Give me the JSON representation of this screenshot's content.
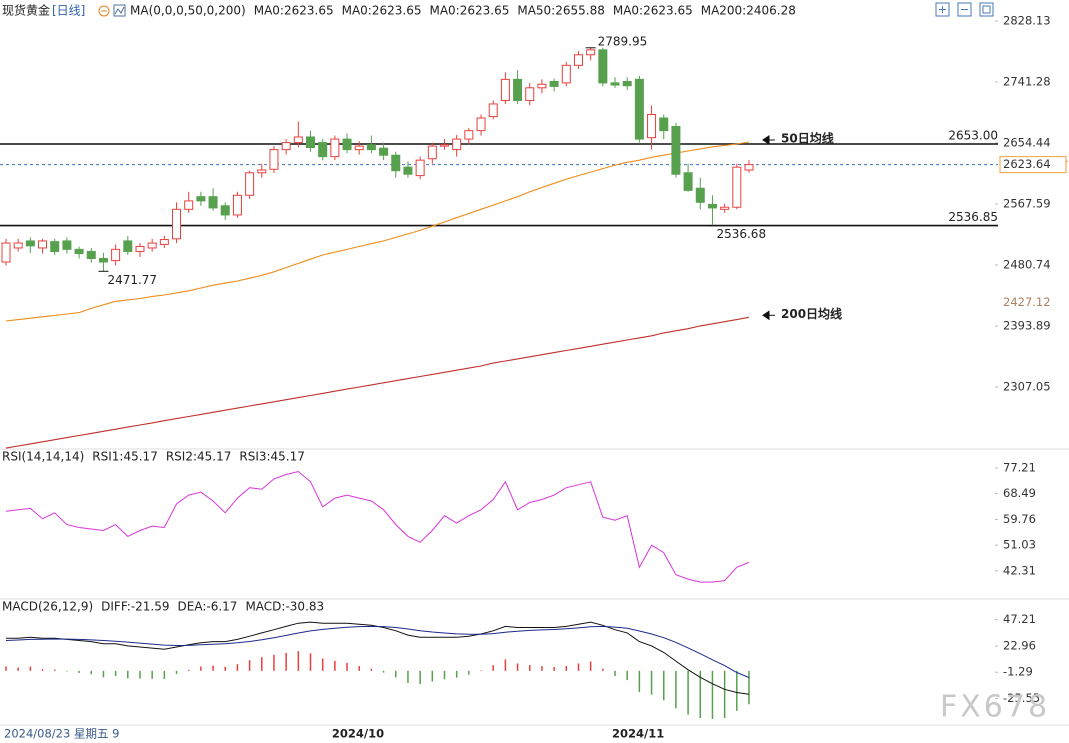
{
  "chart_data": {
    "type": "candlestick",
    "header": {
      "symbol": "现货黄金",
      "period": "[日线]",
      "indicator": "MA(0,0,0,50,0,200)",
      "items": [
        {
          "text": "MA0:2623.65",
          "color": "#222222"
        },
        {
          "text": "MA0:2623.65",
          "color": "#1f3fa8"
        },
        {
          "text": "MA0:2623.65",
          "color": "#d836d8"
        },
        {
          "text": "MA50:2655.88",
          "color": "#f08c1a"
        },
        {
          "text": "MA0:2623.65",
          "color": "#7a7a7a"
        },
        {
          "text": "MA200:2406.28",
          "color": "#d0342c"
        }
      ]
    },
    "categories": [
      null,
      null,
      null,
      null,
      null,
      null,
      null,
      null,
      null,
      null,
      null,
      null,
      null,
      null,
      null,
      null,
      null,
      null,
      null,
      null,
      null,
      null,
      null,
      null,
      null,
      null,
      null,
      "2024/10",
      null,
      null,
      null,
      null,
      null,
      null,
      null,
      null,
      null,
      null,
      null,
      null,
      null,
      null,
      null,
      null,
      null,
      null,
      null,
      null,
      null,
      null,
      "2024/11",
      null,
      null,
      null,
      null,
      null,
      null,
      null,
      null,
      null,
      null,
      null
    ],
    "cursor_label": "2024/08/23 星期五 9",
    "up_color": "#e8403c",
    "down_color": "#56a04e",
    "candles": [
      {
        "open": 2485,
        "high": 2518,
        "low": 2480,
        "close": 2512
      },
      {
        "open": 2505,
        "high": 2518,
        "low": 2500,
        "close": 2512
      },
      {
        "open": 2515,
        "high": 2520,
        "low": 2498,
        "close": 2508
      },
      {
        "open": 2505,
        "high": 2518,
        "low": 2497,
        "close": 2515
      },
      {
        "open": 2514,
        "high": 2518,
        "low": 2495,
        "close": 2500
      },
      {
        "open": 2515,
        "high": 2520,
        "low": 2497,
        "close": 2503
      },
      {
        "open": 2503,
        "high": 2507,
        "low": 2490,
        "close": 2497
      },
      {
        "open": 2500,
        "high": 2505,
        "low": 2484,
        "close": 2490
      },
      {
        "open": 2490,
        "high": 2498,
        "low": 2471.77,
        "close": 2485
      },
      {
        "open": 2487,
        "high": 2510,
        "low": 2480,
        "close": 2503
      },
      {
        "open": 2515,
        "high": 2522,
        "low": 2495,
        "close": 2500
      },
      {
        "open": 2500,
        "high": 2512,
        "low": 2492,
        "close": 2507
      },
      {
        "open": 2505,
        "high": 2518,
        "low": 2500,
        "close": 2512
      },
      {
        "open": 2510,
        "high": 2522,
        "low": 2505,
        "close": 2517
      },
      {
        "open": 2518,
        "high": 2570,
        "low": 2512,
        "close": 2560
      },
      {
        "open": 2560,
        "high": 2585,
        "low": 2555,
        "close": 2572
      },
      {
        "open": 2578,
        "high": 2585,
        "low": 2565,
        "close": 2572
      },
      {
        "open": 2578,
        "high": 2590,
        "low": 2558,
        "close": 2562
      },
      {
        "open": 2565,
        "high": 2570,
        "low": 2545,
        "close": 2552
      },
      {
        "open": 2552,
        "high": 2585,
        "low": 2548,
        "close": 2580
      },
      {
        "open": 2580,
        "high": 2615,
        "low": 2575,
        "close": 2612
      },
      {
        "open": 2612,
        "high": 2625,
        "low": 2605,
        "close": 2616
      },
      {
        "open": 2617,
        "high": 2650,
        "low": 2612,
        "close": 2645
      },
      {
        "open": 2645,
        "high": 2660,
        "low": 2638,
        "close": 2655
      },
      {
        "open": 2655,
        "high": 2685,
        "low": 2648,
        "close": 2663
      },
      {
        "open": 2663,
        "high": 2672,
        "low": 2642,
        "close": 2648
      },
      {
        "open": 2655,
        "high": 2660,
        "low": 2630,
        "close": 2635
      },
      {
        "open": 2635,
        "high": 2665,
        "low": 2630,
        "close": 2660
      },
      {
        "open": 2660,
        "high": 2668,
        "low": 2640,
        "close": 2645
      },
      {
        "open": 2645,
        "high": 2657,
        "low": 2638,
        "close": 2650
      },
      {
        "open": 2652,
        "high": 2665,
        "low": 2640,
        "close": 2645
      },
      {
        "open": 2647,
        "high": 2655,
        "low": 2630,
        "close": 2637
      },
      {
        "open": 2637,
        "high": 2642,
        "low": 2605,
        "close": 2615
      },
      {
        "open": 2620,
        "high": 2628,
        "low": 2605,
        "close": 2610
      },
      {
        "open": 2608,
        "high": 2635,
        "low": 2603,
        "close": 2630
      },
      {
        "open": 2632,
        "high": 2655,
        "low": 2625,
        "close": 2650
      },
      {
        "open": 2650,
        "high": 2660,
        "low": 2645,
        "close": 2652
      },
      {
        "open": 2645,
        "high": 2666,
        "low": 2635,
        "close": 2660
      },
      {
        "open": 2660,
        "high": 2676,
        "low": 2652,
        "close": 2672
      },
      {
        "open": 2672,
        "high": 2695,
        "low": 2665,
        "close": 2690
      },
      {
        "open": 2692,
        "high": 2715,
        "low": 2688,
        "close": 2710
      },
      {
        "open": 2715,
        "high": 2755,
        "low": 2710,
        "close": 2745
      },
      {
        "open": 2745,
        "high": 2758,
        "low": 2710,
        "close": 2715
      },
      {
        "open": 2715,
        "high": 2740,
        "low": 2708,
        "close": 2733
      },
      {
        "open": 2733,
        "high": 2745,
        "low": 2725,
        "close": 2738
      },
      {
        "open": 2742,
        "high": 2746,
        "low": 2728,
        "close": 2735
      },
      {
        "open": 2740,
        "high": 2770,
        "low": 2735,
        "close": 2765
      },
      {
        "open": 2765,
        "high": 2785,
        "low": 2760,
        "close": 2780
      },
      {
        "open": 2780,
        "high": 2789.95,
        "low": 2772,
        "close": 2787
      },
      {
        "open": 2787,
        "high": 2790,
        "low": 2735,
        "close": 2740
      },
      {
        "open": 2740,
        "high": 2748,
        "low": 2733,
        "close": 2737
      },
      {
        "open": 2742,
        "high": 2748,
        "low": 2730,
        "close": 2736
      },
      {
        "open": 2745,
        "high": 2750,
        "low": 2655,
        "close": 2660
      },
      {
        "open": 2662,
        "high": 2708,
        "low": 2645,
        "close": 2695
      },
      {
        "open": 2690,
        "high": 2695,
        "low": 2660,
        "close": 2672
      },
      {
        "open": 2678,
        "high": 2683,
        "low": 2605,
        "close": 2610
      },
      {
        "open": 2612,
        "high": 2625,
        "low": 2585,
        "close": 2587
      },
      {
        "open": 2590,
        "high": 2605,
        "low": 2560,
        "close": 2570
      },
      {
        "open": 2567,
        "high": 2580,
        "low": 2536.68,
        "close": 2562
      },
      {
        "open": 2560,
        "high": 2568,
        "low": 2555,
        "close": 2563
      },
      {
        "open": 2563,
        "high": 2625,
        "low": 2560,
        "close": 2620
      },
      {
        "open": 2616,
        "high": 2630,
        "low": 2612,
        "close": 2623.64
      }
    ],
    "ma50": {
      "color": "#f08c1a",
      "values": [
        2401,
        2403,
        2405,
        2407,
        2409,
        2411,
        2413,
        2419,
        2424,
        2429,
        2431,
        2433,
        2436,
        2438,
        2441,
        2444,
        2448,
        2452,
        2455,
        2458,
        2462,
        2466,
        2471,
        2477,
        2483,
        2489,
        2495,
        2499,
        2503,
        2507,
        2511,
        2515,
        2520,
        2525,
        2530,
        2536,
        2542,
        2548,
        2554,
        2560,
        2566,
        2572,
        2578,
        2585,
        2591,
        2597,
        2603,
        2608,
        2613,
        2618,
        2623,
        2627,
        2630,
        2634,
        2637,
        2640,
        2643,
        2646,
        2649,
        2651,
        2653,
        2655.88
      ]
    },
    "ma200": {
      "color": "#c0302a",
      "values": [
        2220,
        2223,
        2226,
        2229,
        2232,
        2235,
        2238,
        2241,
        2244,
        2247,
        2250,
        2253,
        2256,
        2259,
        2262,
        2265,
        2268,
        2271,
        2274,
        2277,
        2280,
        2283,
        2286,
        2289,
        2292,
        2295,
        2298,
        2301,
        2304,
        2307,
        2310,
        2313,
        2316,
        2319,
        2322,
        2325,
        2328,
        2331,
        2334,
        2337,
        2341,
        2344,
        2347,
        2350,
        2353,
        2356,
        2359,
        2362,
        2365,
        2368,
        2371,
        2374,
        2377,
        2380,
        2384,
        2387,
        2390,
        2394,
        2397,
        2400,
        2403,
        2406.28
      ]
    },
    "ylim": [
      2220.2,
      2858
    ],
    "yticks": [
      2828.13,
      2741.28,
      2654.44,
      2567.59,
      2480.74,
      2393.89,
      2307.05
    ],
    "hlines": [
      {
        "value": 2653,
        "label": "2653.00"
      },
      2536.85
    ],
    "last_price": 2623.64,
    "side_labels": [
      2427.12
    ],
    "extremes": [
      {
        "value": 2789.95,
        "color": "#e8403c"
      },
      {
        "value": 2471.77,
        "color": "#4a9a45"
      },
      {
        "value": 2536.68,
        "color": "#4a9a45"
      }
    ],
    "ma_notes": [
      {
        "text": "50日均线",
        "line": "ma50"
      },
      {
        "text": "200日均线",
        "line": "ma200"
      }
    ],
    "notes_color": "#e00000",
    "watermark": "FX678",
    "rsi": {
      "legend": [
        {
          "text": "RSI(14,14,14)",
          "color": "#222222"
        },
        {
          "text": "RSI1:45.17",
          "color": "#222222"
        },
        {
          "text": "RSI2:45.17",
          "color": "#1f3fa8"
        },
        {
          "text": "RSI3:45.17",
          "color": "#d836d8"
        }
      ],
      "color": "#d836d8",
      "values": [
        62.5,
        63,
        63.5,
        60,
        62,
        58,
        57,
        56.5,
        56,
        58,
        54,
        56,
        57.5,
        57,
        65,
        68,
        69,
        66,
        62,
        67,
        70.5,
        70,
        73.5,
        75,
        76,
        72.5,
        64,
        67,
        68,
        67,
        66,
        63,
        58,
        54,
        52,
        56,
        61,
        58.5,
        61,
        63,
        66.5,
        72.5,
        63,
        65.5,
        66.5,
        68,
        70.5,
        71.5,
        72.5,
        60.5,
        59.5,
        61,
        43.5,
        51,
        48.5,
        41,
        39.5,
        38.5,
        38.5,
        39,
        43.5,
        45.17
      ],
      "ylim": [
        33.1,
        83.3
      ],
      "yticks": [
        77.21,
        68.49,
        59.76,
        51.03,
        42.31
      ]
    },
    "macd": {
      "legend": [
        {
          "text": "MACD(26,12,9)",
          "color": "#222222"
        },
        {
          "text": "DIFF:-21.59",
          "color": "#222222"
        },
        {
          "text": "DEA:-6.17",
          "color": "#1f3fa8"
        },
        {
          "text": "MACD:-30.83",
          "color": "#d836d8"
        }
      ],
      "diff": {
        "color": "#111111",
        "values": [
          30,
          30,
          31,
          30,
          30,
          29,
          28,
          27,
          25,
          25,
          23,
          22,
          21,
          20,
          22,
          24,
          26,
          27,
          27,
          29,
          32,
          35,
          38,
          41,
          44,
          45,
          44,
          44,
          44,
          43,
          42,
          40,
          37,
          33,
          31,
          31,
          31,
          31,
          32,
          34,
          37,
          41,
          40,
          40,
          40,
          40,
          41,
          43,
          45,
          42,
          38,
          35,
          27,
          23,
          17,
          9,
          1,
          -6,
          -12,
          -17,
          -20,
          -21.59
        ]
      },
      "dea": {
        "color": "#1a2a8c",
        "values": [
          28,
          28.5,
          29,
          29.2,
          29.4,
          29.3,
          29,
          28.6,
          28,
          27.4,
          26.5,
          25.6,
          24.7,
          23.8,
          23.4,
          23.5,
          24,
          24.6,
          25.1,
          25.9,
          27.1,
          28.7,
          30.6,
          32.7,
          34.9,
          36.9,
          38.3,
          39.4,
          40.3,
          40.8,
          41,
          40.8,
          40,
          38.6,
          37.1,
          35.9,
          34.9,
          34.1,
          33.7,
          33.8,
          34.4,
          35.7,
          36.6,
          37.3,
          37.8,
          38.2,
          38.8,
          39.6,
          40.7,
          41,
          40.4,
          39.3,
          36.8,
          34,
          30.6,
          26.3,
          21.2,
          15.8,
          10.2,
          4.8,
          -1.5,
          -6.17
        ]
      },
      "hist": {
        "up_color": "#e8403c",
        "down_color": "#56a04e",
        "values": [
          4,
          3,
          4,
          1.6,
          1.2,
          -0.6,
          -2,
          -3.2,
          -6,
          -4.8,
          -7,
          -7.2,
          -7.4,
          -7.6,
          -2.8,
          1,
          4,
          4.8,
          3.8,
          6.2,
          9.8,
          12.6,
          14.8,
          16.6,
          18.2,
          16.2,
          11.4,
          9.2,
          7.4,
          4.4,
          2,
          -1.6,
          -6,
          -11.2,
          -12.2,
          -9.8,
          -7.8,
          -6.2,
          -3.4,
          0.4,
          5.2,
          10.6,
          6.8,
          5.4,
          4.4,
          3.6,
          4.4,
          6.8,
          8.6,
          2,
          -4.8,
          -8.6,
          -19.6,
          -22,
          -27.2,
          -34.6,
          -40.4,
          -43.6,
          -44.4,
          -43.6,
          -37,
          -30.83
        ]
      },
      "ylim": [
        -50,
        65.4
      ],
      "yticks": [
        47.21,
        22.96,
        -1.29,
        -25.55
      ]
    }
  }
}
